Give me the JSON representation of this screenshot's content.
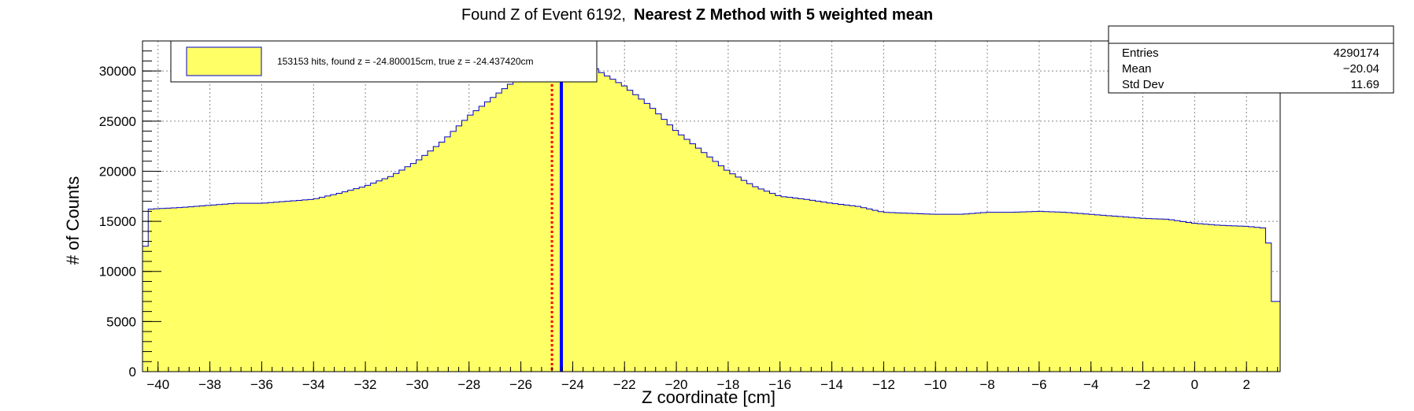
{
  "chart_data": {
    "type": "histogram",
    "title": "Found Z of Event 6192,",
    "title_bold": "Nearest Z Method with 5 weighted mean",
    "xlabel": "Z coordinate [cm]",
    "ylabel": "# of Counts",
    "xlim": [
      -40.6,
      3.3
    ],
    "ylim": [
      0,
      33000
    ],
    "grid": true,
    "x_ticks": [
      -40,
      -38,
      -36,
      -34,
      -32,
      -30,
      -28,
      -26,
      -24,
      -22,
      -20,
      -18,
      -16,
      -14,
      -12,
      -10,
      -8,
      -6,
      -4,
      -2,
      0,
      2
    ],
    "y_ticks": [
      0,
      5000,
      10000,
      15000,
      20000,
      25000,
      30000
    ],
    "fill_color": "#ffff66",
    "line_color": "#0000cc",
    "profile": [
      [
        -40.6,
        8000
      ],
      [
        -40.4,
        16200
      ],
      [
        -39,
        16400
      ],
      [
        -38,
        16600
      ],
      [
        -37,
        16800
      ],
      [
        -36,
        16800
      ],
      [
        -35,
        17000
      ],
      [
        -34,
        17200
      ],
      [
        -33,
        17800
      ],
      [
        -32,
        18500
      ],
      [
        -31,
        19500
      ],
      [
        -30,
        21000
      ],
      [
        -29,
        23000
      ],
      [
        -28,
        25500
      ],
      [
        -27,
        27500
      ],
      [
        -26,
        29500
      ],
      [
        -25,
        30500
      ],
      [
        -24.5,
        31200
      ],
      [
        -24,
        31500
      ],
      [
        -23.5,
        31000
      ],
      [
        -23,
        30000
      ],
      [
        -22,
        28500
      ],
      [
        -21,
        26500
      ],
      [
        -20,
        24000
      ],
      [
        -19,
        22000
      ],
      [
        -18,
        20000
      ],
      [
        -17,
        18500
      ],
      [
        -16,
        17500
      ],
      [
        -15,
        17200
      ],
      [
        -14,
        16800
      ],
      [
        -13,
        16500
      ],
      [
        -12,
        15900
      ],
      [
        -11,
        15800
      ],
      [
        -10,
        15700
      ],
      [
        -9,
        15700
      ],
      [
        -8,
        15900
      ],
      [
        -7,
        15900
      ],
      [
        -6,
        16000
      ],
      [
        -5,
        15900
      ],
      [
        -4,
        15700
      ],
      [
        -3,
        15500
      ],
      [
        -2,
        15300
      ],
      [
        -1,
        15200
      ],
      [
        0,
        14800
      ],
      [
        1,
        14600
      ],
      [
        2,
        14500
      ],
      [
        2.8,
        14300
      ],
      [
        3.05,
        7000
      ],
      [
        3.3,
        7000
      ]
    ],
    "lines": [
      {
        "name": "found z",
        "x": -24.800015,
        "color": "#ff0000",
        "style": "dotted"
      },
      {
        "name": "true z",
        "x": -24.43742,
        "color": "#0000ff",
        "style": "solid"
      }
    ],
    "legend": {
      "text": "153153 hits, found z = -24.800015cm, true z = -24.437420cm"
    },
    "stats": {
      "entries_label": "Entries",
      "entries_value": "4290174",
      "mean_label": "Mean",
      "mean_value": "−20.04",
      "stddev_label": "Std Dev",
      "stddev_value": "11.69"
    }
  }
}
